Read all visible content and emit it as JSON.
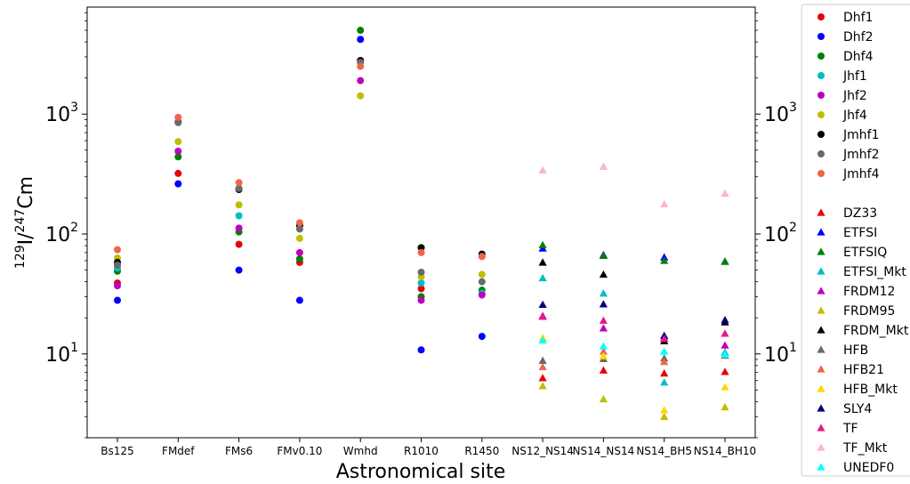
{
  "chart_data": {
    "type": "scatter",
    "xlabel": "Astronomical site",
    "ylabel": {
      "sup1": "129",
      "base1": "I/",
      "sup2": "247",
      "base2": "Cm"
    },
    "yscale": "log",
    "ylim": [
      2.0,
      7800
    ],
    "yticks": [
      {
        "value": 10,
        "base": "10",
        "exp": "1"
      },
      {
        "value": 100,
        "base": "10",
        "exp": "2"
      },
      {
        "value": 1000,
        "base": "10",
        "exp": "3"
      }
    ],
    "categories": [
      "Bs125",
      "FMdef",
      "FMs6",
      "FMv0.10",
      "Wmhd",
      "R1010",
      "R1450",
      "NS12_NS14",
      "NS14_NS14",
      "NS14_BH5",
      "NS14_BH10"
    ],
    "grid": false,
    "legend": "outside-right",
    "series": [
      {
        "name": "Dhf1",
        "marker": "circle",
        "color": "#e8000b",
        "values": [
          39,
          320,
          82,
          58,
          null,
          35,
          65,
          null,
          null,
          null,
          null
        ]
      },
      {
        "name": "Dhf2",
        "marker": "circle",
        "color": "#0000ff",
        "values": [
          28,
          262,
          50,
          28,
          4200,
          10.8,
          14,
          null,
          null,
          null,
          null
        ]
      },
      {
        "name": "Dhf4",
        "marker": "circle",
        "color": "#008000",
        "values": [
          49,
          440,
          104,
          62,
          5000,
          30,
          34,
          null,
          null,
          null,
          null
        ]
      },
      {
        "name": "Jhf1",
        "marker": "circle",
        "color": "#00bfbf",
        "values": [
          52,
          null,
          142,
          null,
          null,
          39,
          32,
          null,
          null,
          null,
          null
        ]
      },
      {
        "name": "Jhf2",
        "marker": "circle",
        "color": "#bf00bf",
        "values": [
          37,
          490,
          112,
          70,
          1900,
          28,
          31,
          null,
          null,
          null,
          null
        ]
      },
      {
        "name": "Jhf4",
        "marker": "circle",
        "color": "#bfbf00",
        "values": [
          63,
          590,
          175,
          92,
          1420,
          44,
          46,
          null,
          null,
          null,
          null
        ]
      },
      {
        "name": "Jmhf1",
        "marker": "circle",
        "color": "#000000",
        "values": [
          58,
          860,
          235,
          118,
          2800,
          77,
          68,
          null,
          null,
          null,
          null
        ]
      },
      {
        "name": "Jmhf2",
        "marker": "circle",
        "color": "#696969",
        "values": [
          55,
          850,
          240,
          110,
          2700,
          48,
          40,
          null,
          null,
          null,
          null
        ]
      },
      {
        "name": "Jmhf4",
        "marker": "circle",
        "color": "#f06449",
        "values": [
          74,
          940,
          268,
          124,
          2500,
          70,
          65,
          null,
          null,
          null,
          null
        ]
      },
      {
        "name": "DZ33",
        "marker": "triangle",
        "color": "#e8000b",
        "values": [
          null,
          null,
          null,
          null,
          null,
          null,
          null,
          6.3,
          7.3,
          6.9,
          7.1
        ]
      },
      {
        "name": "ETFSI",
        "marker": "triangle",
        "color": "#0000ff",
        "values": [
          null,
          null,
          null,
          null,
          null,
          null,
          null,
          76,
          67,
          64,
          59
        ]
      },
      {
        "name": "ETFSIQ",
        "marker": "triangle",
        "color": "#008000",
        "values": [
          null,
          null,
          null,
          null,
          null,
          null,
          null,
          81,
          66,
          60,
          59
        ]
      },
      {
        "name": "ETFSI_Mkt",
        "marker": "triangle",
        "color": "#00bfbf",
        "values": [
          null,
          null,
          null,
          null,
          null,
          null,
          null,
          43,
          32,
          5.8,
          10.3
        ]
      },
      {
        "name": "FRDM12",
        "marker": "triangle",
        "color": "#bf00bf",
        "values": [
          null,
          null,
          null,
          null,
          null,
          null,
          null,
          20.8,
          16.4,
          13.6,
          11.8
        ]
      },
      {
        "name": "FRDM95",
        "marker": "triangle",
        "color": "#bfbf00",
        "values": [
          null,
          null,
          null,
          null,
          null,
          null,
          null,
          5.4,
          4.2,
          3.0,
          3.6
        ]
      },
      {
        "name": "FRDM_Mkt",
        "marker": "triangle",
        "color": "#000000",
        "values": [
          null,
          null,
          null,
          null,
          null,
          null,
          null,
          58,
          46,
          12.8,
          18.4
        ]
      },
      {
        "name": "HFB",
        "marker": "triangle",
        "color": "#696969",
        "values": [
          null,
          null,
          null,
          null,
          null,
          null,
          null,
          8.8,
          9.1,
          9.2,
          9.7
        ]
      },
      {
        "name": "HFB21",
        "marker": "triangle",
        "color": "#f06449",
        "values": [
          null,
          null,
          null,
          null,
          null,
          null,
          null,
          7.8,
          10.5,
          8.6,
          9.8
        ]
      },
      {
        "name": "HFB_Mkt",
        "marker": "triangle",
        "color": "#ffd700",
        "values": [
          null,
          null,
          null,
          null,
          null,
          null,
          null,
          13.6,
          9.6,
          3.4,
          5.3
        ]
      },
      {
        "name": "SLY4",
        "marker": "triangle",
        "color": "#00007f",
        "values": [
          null,
          null,
          null,
          null,
          null,
          null,
          null,
          25.8,
          26,
          14.2,
          19.2
        ]
      },
      {
        "name": "TF",
        "marker": "triangle",
        "color": "#e6198c",
        "values": [
          null,
          null,
          null,
          null,
          null,
          null,
          null,
          20.5,
          19,
          13.4,
          14.8
        ]
      },
      {
        "name": "TF_Mkt",
        "marker": "triangle",
        "color": "#ffb6c1",
        "values": [
          null,
          null,
          null,
          null,
          null,
          null,
          null,
          340,
          365,
          178,
          218
        ]
      },
      {
        "name": "UNEDF0",
        "marker": "triangle",
        "color": "#00ffff",
        "values": [
          null,
          null,
          null,
          null,
          null,
          null,
          null,
          13,
          11.6,
          10.5,
          9.9
        ]
      }
    ]
  }
}
